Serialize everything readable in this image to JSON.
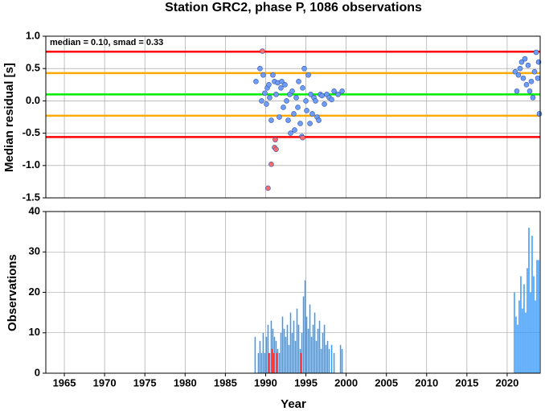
{
  "chart_data": [
    {
      "type": "scatter",
      "title": "Station GRC2, phase P, 1086 observations",
      "ylabel": "Median residual [s]",
      "annotation": "median = 0.10, smad = 0.33",
      "xlim": [
        1962.7,
        2024.1
      ],
      "ylim": [
        -1.5,
        1.0
      ],
      "yticks": [
        {
          "value": -1.5,
          "label": "-1.5"
        },
        {
          "value": -1,
          "label": "-1.0"
        },
        {
          "value": -0.5,
          "label": "-0.5"
        },
        {
          "value": 0,
          "label": "0.0"
        },
        {
          "value": 0.5,
          "label": "0.5"
        },
        {
          "value": 1,
          "label": "1.0"
        }
      ],
      "grid": true,
      "hlines": [
        {
          "value": 0.76,
          "color": "#ff0000"
        },
        {
          "value": 0.43,
          "color": "#ffaa00"
        },
        {
          "value": 0.1,
          "color": "#00ee00"
        },
        {
          "value": -0.23,
          "color": "#ffaa00"
        },
        {
          "value": -0.56,
          "color": "#ff0000"
        }
      ],
      "series": [
        {
          "color": "#6f9df5",
          "x": [
            1988.8,
            1989.3,
            1989.5,
            1989.7,
            1989.9,
            1990.1,
            1990.2,
            1990.4,
            1990.5,
            1990.7,
            1990.9,
            1991.1,
            1991.3,
            1991.5,
            1991.7,
            1991.9,
            1992.0,
            1992.2,
            1992.4,
            1992.6,
            1992.8,
            1993.0,
            1993.1,
            1993.3,
            1993.5,
            1993.6,
            1993.8,
            1994.0,
            1994.1,
            1994.3,
            1994.5,
            1994.6,
            1994.8,
            1995.0,
            1995.1,
            1995.3,
            1995.5,
            1995.6,
            1995.8,
            1996.0,
            1996.2,
            1996.4,
            1996.6,
            1996.8,
            1997.0,
            1997.3,
            1997.6,
            1997.9,
            1998.2,
            1998.5,
            1999.0,
            1999.5,
            2021.0,
            2021.2,
            2021.4,
            2021.6,
            2021.8,
            2022.0,
            2022.2,
            2022.4,
            2022.6,
            2022.8,
            2023.0,
            2023.2,
            2023.4,
            2023.6,
            2023.8,
            2024.0,
            2023.9
          ],
          "values": [
            0.3,
            0.5,
            0.0,
            0.4,
            0.12,
            -0.05,
            0.2,
            0.25,
            0.05,
            -0.3,
            0.4,
            0.3,
            0.1,
            0.28,
            -0.25,
            0.2,
            0.3,
            -0.1,
            0.25,
            0.0,
            -0.3,
            0.1,
            -0.5,
            0.15,
            -0.2,
            -0.45,
            0.05,
            -0.1,
            0.3,
            -0.35,
            -0.55,
            0.2,
            0.5,
            0.0,
            -0.15,
            0.4,
            -0.35,
            0.1,
            -0.2,
            0.05,
            0.0,
            -0.25,
            -0.3,
            0.1,
            0.08,
            -0.05,
            0.1,
            0.05,
            0.02,
            0.15,
            0.1,
            0.15,
            0.45,
            0.15,
            0.4,
            0.5,
            0.6,
            0.35,
            0.65,
            0.25,
            0.55,
            0.15,
            0.3,
            0.05,
            0.45,
            0.75,
            0.35,
            -0.2,
            0.6
          ]
        },
        {
          "color": "#ff6b6b",
          "x": [
            1989.6,
            1990.3,
            1990.7,
            1991.1,
            1991.2,
            1991.3,
            1994.6
          ],
          "values": [
            0.77,
            -1.35,
            -0.98,
            -0.72,
            -0.6,
            -0.75,
            -0.57
          ]
        }
      ]
    },
    {
      "type": "bar",
      "xlabel": "Year",
      "ylabel": "Observations",
      "xlim": [
        1962.7,
        2024.1
      ],
      "ylim": [
        0,
        40
      ],
      "xticks": [
        1965,
        1970,
        1975,
        1980,
        1985,
        1990,
        1995,
        2000,
        2005,
        2010,
        2015,
        2020
      ],
      "yticks": [
        0,
        10,
        20,
        30,
        40
      ],
      "grid": true,
      "series": [
        {
          "color": "#3399ff",
          "x": [
            1988.7,
            1989.1,
            1989.3,
            1989.5,
            1989.7,
            1989.9,
            1990.1,
            1990.3,
            1990.5,
            1990.7,
            1990.9,
            1991.1,
            1991.3,
            1991.5,
            1991.7,
            1991.9,
            1992.1,
            1992.3,
            1992.5,
            1992.7,
            1992.9,
            1993.1,
            1993.3,
            1993.5,
            1993.7,
            1993.9,
            1994.1,
            1994.3,
            1994.5,
            1994.7,
            1994.9,
            1995.1,
            1995.3,
            1995.5,
            1995.7,
            1995.9,
            1996.1,
            1996.3,
            1996.5,
            1996.7,
            1996.9,
            1997.1,
            1997.3,
            1997.5,
            1997.7,
            1997.9,
            1998.2,
            1998.5,
            1999.3,
            1999.5,
            2020.9,
            2021.1,
            2021.3,
            2021.5,
            2021.7,
            2021.9,
            2022.1,
            2022.3,
            2022.5,
            2022.7,
            2022.9,
            2023.1,
            2023.3,
            2023.5,
            2023.7,
            2023.9
          ],
          "values": [
            9,
            5,
            8,
            5,
            10,
            5,
            9,
            12,
            5,
            13,
            11,
            9,
            8,
            6,
            5,
            10,
            14,
            11,
            9,
            12,
            7,
            15,
            10,
            13,
            8,
            16,
            12,
            6,
            10,
            19,
            23,
            14,
            11,
            17,
            9,
            12,
            15,
            8,
            11,
            13,
            6,
            10,
            12,
            7,
            8,
            6,
            7,
            5,
            7,
            6,
            20,
            14,
            12,
            18,
            24,
            16,
            22,
            15,
            26,
            36,
            20,
            34,
            24,
            18,
            28,
            28
          ]
        },
        {
          "color": "#ff3333",
          "x": [
            1990.4,
            1990.8,
            1991.0,
            1991.4,
            1994.4
          ],
          "values": [
            5,
            6,
            5,
            5,
            5
          ]
        }
      ]
    }
  ]
}
